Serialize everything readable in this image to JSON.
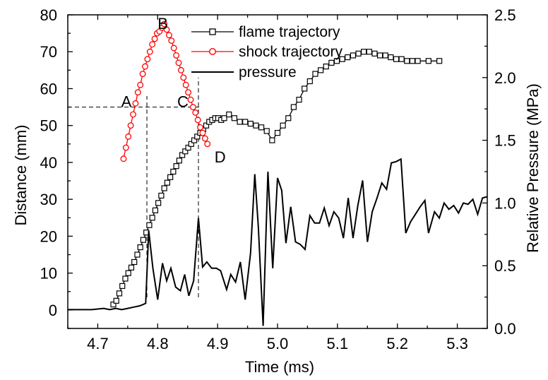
{
  "chart_data": {
    "type": "line",
    "title": "",
    "xlabel": "Time (ms)",
    "ylabel": "Distance (mm)",
    "y2label": "Relative Pressure (MPa)",
    "xlim": [
      4.65,
      5.35
    ],
    "ylim": [
      -5,
      80
    ],
    "y2lim": [
      0,
      2.5
    ],
    "xticks": [
      4.7,
      4.8,
      4.9,
      5.0,
      5.1,
      5.2,
      5.3
    ],
    "xtick_labels": [
      "4.7",
      "4.8",
      "4.9",
      "5.0",
      "5.1",
      "5.2",
      "5.3"
    ],
    "yticks": [
      0,
      10,
      20,
      30,
      40,
      50,
      60,
      70,
      80
    ],
    "ytick_labels": [
      "0",
      "10",
      "20",
      "30",
      "40",
      "50",
      "60",
      "70",
      "80"
    ],
    "y2ticks": [
      0,
      0.5,
      1.0,
      1.5,
      2.0,
      2.5
    ],
    "y2tick_labels": [
      "0.0",
      "0.5",
      "1.0",
      "1.5",
      "2.0",
      "2.5"
    ],
    "grid": false,
    "legend": "top-center",
    "series": [
      {
        "name": "flame trajectory",
        "axis": "left",
        "color": "#000000",
        "marker": "square",
        "x": [
          4.726,
          4.731,
          4.736,
          4.741,
          4.746,
          4.751,
          4.756,
          4.761,
          4.766,
          4.771,
          4.776,
          4.781,
          4.786,
          4.791,
          4.796,
          4.801,
          4.806,
          4.811,
          4.816,
          4.821,
          4.826,
          4.831,
          4.836,
          4.841,
          4.846,
          4.851,
          4.856,
          4.861,
          4.866,
          4.871,
          4.876,
          4.881,
          4.886,
          4.891,
          4.896,
          4.901,
          4.906,
          4.911,
          4.919,
          4.928,
          4.937,
          4.946,
          4.955,
          4.964,
          4.973,
          4.982,
          4.991,
          5.0,
          5.009,
          5.018,
          5.027,
          5.036,
          5.045,
          5.054,
          5.063,
          5.072,
          5.081,
          5.09,
          5.099,
          5.108,
          5.117,
          5.126,
          5.135,
          5.144,
          5.153,
          5.162,
          5.171,
          5.18,
          5.189,
          5.198,
          5.207,
          5.216,
          5.225,
          5.234,
          5.252,
          5.27
        ],
        "y": [
          1.5,
          2.5,
          4.5,
          6.5,
          8.5,
          10,
          11.5,
          13,
          15,
          17,
          19,
          21,
          23,
          25,
          27,
          29,
          31,
          33,
          34.5,
          36,
          37.5,
          39,
          40.5,
          42,
          43,
          44,
          45,
          46,
          47,
          48,
          49,
          50,
          51,
          51.5,
          52,
          52,
          51.5,
          52,
          53,
          52,
          51,
          51,
          50.5,
          50,
          49.5,
          48.5,
          46,
          48,
          50,
          52,
          55,
          57,
          60,
          62,
          64,
          65,
          66,
          67,
          67.5,
          68,
          68.5,
          69,
          69.5,
          70,
          70,
          69.5,
          69,
          69,
          68.5,
          68,
          68,
          67.5,
          67.5,
          67.5,
          67.5,
          67.5
        ]
      },
      {
        "name": "shock trajectory",
        "axis": "left",
        "color": "#ff0000",
        "marker": "circle",
        "x": [
          4.743,
          4.747,
          4.751,
          4.755,
          4.759,
          4.763,
          4.767,
          4.771,
          4.775,
          4.779,
          4.783,
          4.787,
          4.791,
          4.795,
          4.799,
          4.803,
          4.807,
          4.811,
          4.815,
          4.819,
          4.823,
          4.827,
          4.831,
          4.835,
          4.839,
          4.843,
          4.847,
          4.851,
          4.855,
          4.859,
          4.863,
          4.867,
          4.871,
          4.875,
          4.879,
          4.883
        ],
        "y": [
          41,
          44,
          47,
          50,
          53,
          56,
          59,
          61,
          64,
          66,
          68,
          70,
          72,
          73.5,
          75,
          75.5,
          76.5,
          77.5,
          76,
          74.5,
          73,
          71,
          69,
          67,
          65,
          63,
          61,
          59,
          57,
          55,
          53.5,
          51.5,
          49.5,
          48,
          46.5,
          45
        ]
      },
      {
        "name": "pressure",
        "axis": "right",
        "color": "#000000",
        "marker": "none",
        "x": [
          4.65,
          4.67,
          4.69,
          4.71,
          4.72,
          4.73,
          4.74,
          4.75,
          4.76,
          4.77,
          4.775,
          4.78,
          4.785,
          4.792,
          4.8,
          4.808,
          4.815,
          4.822,
          4.83,
          4.838,
          4.845,
          4.852,
          4.86,
          4.868,
          4.875,
          4.882,
          4.89,
          4.898,
          4.905,
          4.915,
          4.922,
          4.93,
          4.938,
          4.946,
          4.955,
          4.962,
          4.968,
          4.976,
          4.984,
          4.992,
          5.0,
          5.007,
          5.014,
          5.022,
          5.03,
          5.038,
          5.046,
          5.054,
          5.062,
          5.07,
          5.078,
          5.086,
          5.094,
          5.102,
          5.11,
          5.118,
          5.126,
          5.134,
          5.142,
          5.15,
          5.158,
          5.166,
          5.174,
          5.182,
          5.19,
          5.198,
          5.206,
          5.214,
          5.222,
          5.23,
          5.238,
          5.246,
          5.252,
          5.262,
          5.27,
          5.278,
          5.286,
          5.294,
          5.302,
          5.31,
          5.318,
          5.326,
          5.334,
          5.342,
          5.35
        ],
        "y": [
          0.15,
          0.15,
          0.15,
          0.16,
          0.15,
          0.16,
          0.15,
          0.16,
          0.17,
          0.18,
          0.19,
          0.2,
          0.78,
          0.48,
          0.23,
          0.52,
          0.38,
          0.48,
          0.33,
          0.3,
          0.43,
          0.26,
          0.38,
          0.88,
          0.49,
          0.53,
          0.48,
          0.48,
          0.46,
          0.31,
          0.43,
          0.37,
          0.53,
          0.23,
          0.6,
          1.23,
          0.81,
          0.02,
          1.25,
          0.48,
          1.2,
          1.1,
          0.68,
          0.97,
          0.69,
          0.67,
          0.63,
          0.9,
          0.84,
          0.84,
          0.96,
          0.82,
          0.93,
          0.88,
          0.72,
          1.04,
          0.72,
          0.98,
          1.18,
          0.69,
          0.93,
          1.04,
          1.16,
          1.11,
          1.32,
          1.33,
          1.35,
          0.76,
          0.85,
          0.91,
          0.97,
          1.02,
          0.76,
          0.93,
          0.88,
          1.0,
          0.95,
          0.98,
          0.92,
          1.0,
          0.99,
          1.03,
          0.91,
          1.04,
          1.05
        ]
      }
    ],
    "annotations": [
      {
        "text": "A",
        "x": 4.776,
        "y": 55
      },
      {
        "text": "B",
        "x": 4.811,
        "y": 77.5
      },
      {
        "text": "C",
        "x": 4.868,
        "y": 55
      },
      {
        "text": "D",
        "x": 4.883,
        "y": 45
      }
    ],
    "guides": {
      "horizontal": {
        "y": 55,
        "x_from": 4.65,
        "x_to": 4.871
      },
      "verticals": [
        {
          "x": 4.782,
          "y_from": -5,
          "y_to": 58
        },
        {
          "x": 4.868,
          "y_from": -5,
          "y_to": 63
        }
      ]
    }
  }
}
